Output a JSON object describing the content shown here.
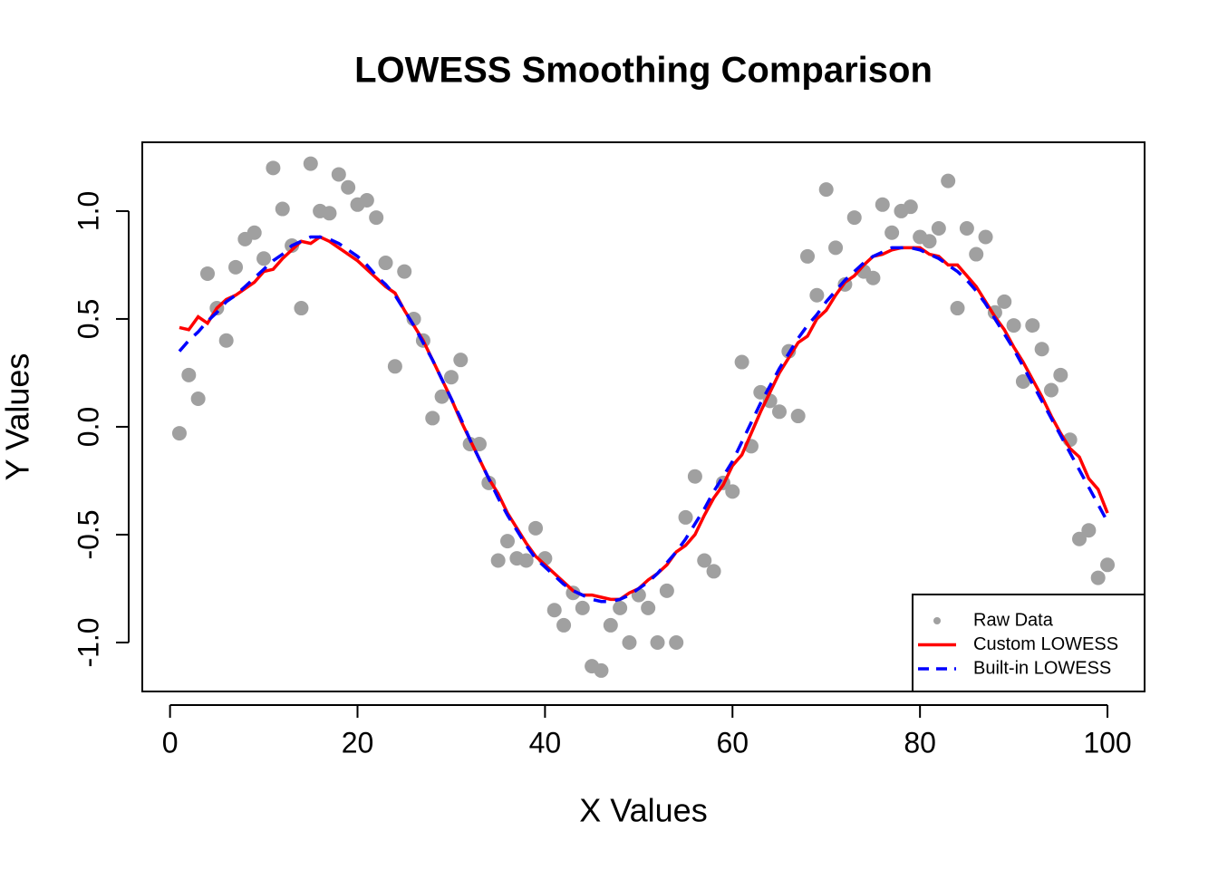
{
  "chart_data": {
    "type": "line",
    "title": "LOWESS Smoothing Comparison",
    "x_label": "X Values",
    "y_label": "Y Values",
    "x": [
      1,
      2,
      3,
      4,
      5,
      6,
      7,
      8,
      9,
      10,
      11,
      12,
      13,
      14,
      15,
      16,
      17,
      18,
      19,
      20,
      21,
      22,
      23,
      24,
      25,
      26,
      27,
      28,
      29,
      30,
      31,
      32,
      33,
      34,
      35,
      36,
      37,
      38,
      39,
      40,
      41,
      42,
      43,
      44,
      45,
      46,
      47,
      48,
      49,
      50,
      51,
      52,
      53,
      54,
      55,
      56,
      57,
      58,
      59,
      60,
      61,
      62,
      63,
      64,
      65,
      66,
      67,
      68,
      69,
      70,
      71,
      72,
      73,
      74,
      75,
      76,
      77,
      78,
      79,
      80,
      81,
      82,
      83,
      84,
      85,
      86,
      87,
      88,
      89,
      90,
      91,
      92,
      93,
      94,
      95,
      96,
      97,
      98,
      99,
      100
    ],
    "series": [
      {
        "name": "Raw Data",
        "color": "#a0a0a0",
        "mark": "point",
        "values": [
          -0.03,
          0.24,
          0.13,
          0.71,
          0.55,
          0.4,
          0.74,
          0.87,
          0.9,
          0.78,
          1.2,
          1.01,
          0.84,
          0.55,
          1.22,
          1.0,
          0.99,
          1.17,
          1.11,
          1.03,
          1.05,
          0.97,
          0.76,
          0.28,
          0.72,
          0.5,
          0.4,
          0.04,
          0.14,
          0.23,
          0.31,
          -0.08,
          -0.08,
          -0.26,
          -0.62,
          -0.53,
          -0.61,
          -0.62,
          -0.47,
          -0.61,
          -0.85,
          -0.92,
          -0.77,
          -0.84,
          -1.11,
          -1.13,
          -0.92,
          -0.84,
          -1.0,
          -0.78,
          -0.84,
          -1.0,
          -0.76,
          -1.0,
          -0.42,
          -0.23,
          -0.62,
          -0.67,
          -0.26,
          -0.3,
          0.3,
          -0.09,
          0.16,
          0.12,
          0.07,
          0.35,
          0.05,
          0.79,
          0.61,
          1.1,
          0.83,
          0.66,
          0.97,
          0.72,
          0.69,
          1.03,
          0.9,
          1.0,
          1.02,
          0.88,
          0.86,
          0.92,
          1.14,
          0.55,
          0.92,
          0.8,
          0.88,
          0.53,
          0.58,
          0.47,
          0.21,
          0.47,
          0.36,
          0.17,
          0.24,
          -0.06,
          -0.52,
          -0.48,
          -0.7,
          -0.64
        ]
      },
      {
        "name": "Custom LOWESS",
        "color": "#ff0000",
        "mark": "line",
        "dashed": false,
        "values": [
          0.46,
          0.45,
          0.51,
          0.48,
          0.55,
          0.59,
          0.61,
          0.64,
          0.67,
          0.72,
          0.73,
          0.78,
          0.82,
          0.86,
          0.85,
          0.88,
          0.86,
          0.83,
          0.8,
          0.77,
          0.73,
          0.69,
          0.65,
          0.62,
          0.54,
          0.47,
          0.4,
          0.31,
          0.22,
          0.13,
          0.03,
          -0.06,
          -0.15,
          -0.24,
          -0.31,
          -0.4,
          -0.47,
          -0.54,
          -0.6,
          -0.64,
          -0.68,
          -0.72,
          -0.76,
          -0.78,
          -0.78,
          -0.79,
          -0.8,
          -0.8,
          -0.77,
          -0.75,
          -0.71,
          -0.68,
          -0.64,
          -0.58,
          -0.55,
          -0.5,
          -0.41,
          -0.33,
          -0.27,
          -0.18,
          -0.13,
          -0.03,
          0.07,
          0.16,
          0.25,
          0.32,
          0.39,
          0.42,
          0.5,
          0.54,
          0.61,
          0.67,
          0.7,
          0.75,
          0.79,
          0.8,
          0.82,
          0.83,
          0.83,
          0.83,
          0.8,
          0.79,
          0.75,
          0.75,
          0.7,
          0.65,
          0.58,
          0.51,
          0.45,
          0.37,
          0.3,
          0.22,
          0.14,
          0.05,
          -0.03,
          -0.1,
          -0.14,
          -0.24,
          -0.29,
          -0.4
        ]
      },
      {
        "name": "Built-in LOWESS",
        "color": "#0000ff",
        "mark": "line",
        "dashed": true,
        "values": [
          0.35,
          0.4,
          0.44,
          0.49,
          0.53,
          0.58,
          0.61,
          0.65,
          0.69,
          0.73,
          0.77,
          0.8,
          0.84,
          0.86,
          0.88,
          0.88,
          0.87,
          0.85,
          0.82,
          0.79,
          0.75,
          0.7,
          0.66,
          0.61,
          0.54,
          0.47,
          0.39,
          0.31,
          0.22,
          0.13,
          0.04,
          -0.06,
          -0.15,
          -0.24,
          -0.33,
          -0.41,
          -0.48,
          -0.55,
          -0.61,
          -0.65,
          -0.69,
          -0.73,
          -0.76,
          -0.78,
          -0.8,
          -0.81,
          -0.81,
          -0.8,
          -0.78,
          -0.75,
          -0.72,
          -0.68,
          -0.63,
          -0.58,
          -0.52,
          -0.45,
          -0.38,
          -0.3,
          -0.23,
          -0.16,
          -0.07,
          0.02,
          0.11,
          0.19,
          0.27,
          0.34,
          0.41,
          0.47,
          0.52,
          0.58,
          0.63,
          0.68,
          0.72,
          0.76,
          0.79,
          0.81,
          0.83,
          0.83,
          0.83,
          0.82,
          0.8,
          0.78,
          0.75,
          0.72,
          0.68,
          0.63,
          0.57,
          0.5,
          0.43,
          0.36,
          0.28,
          0.2,
          0.12,
          0.04,
          -0.04,
          -0.12,
          -0.2,
          -0.28,
          -0.36,
          -0.44
        ]
      }
    ],
    "xlim": [
      -2.96,
      103.96
    ],
    "ylim": [
      -1.227,
      1.319
    ],
    "xticks": [
      0,
      20,
      40,
      60,
      80,
      100
    ],
    "yticks": [
      {
        "value": -1,
        "label": "-1.0"
      },
      -0.5,
      {
        "value": 0,
        "label": "0.0"
      },
      0.5,
      {
        "value": 1,
        "label": "1.0"
      }
    ],
    "legend": "bottom-right"
  }
}
